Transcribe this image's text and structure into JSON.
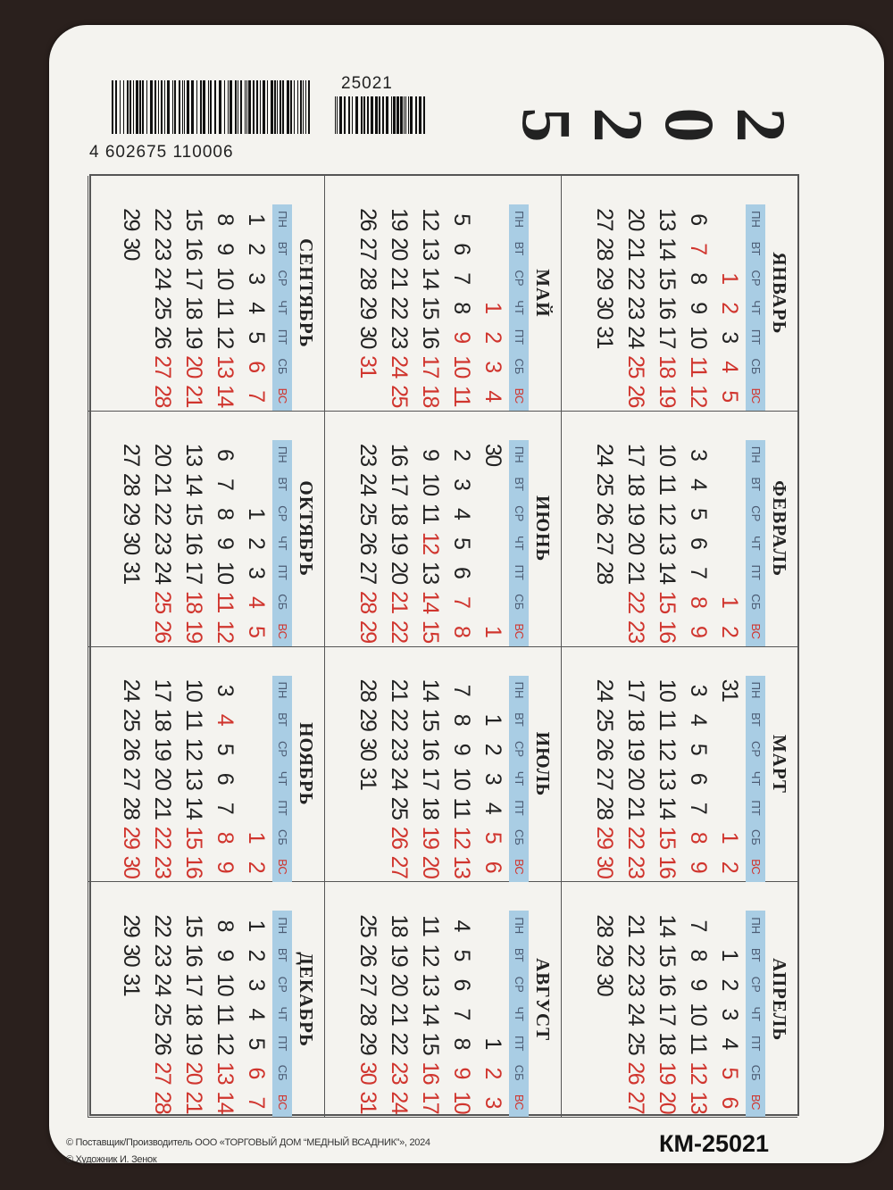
{
  "year": [
    "2",
    "0",
    "2",
    "5"
  ],
  "weekdays": [
    "ПН",
    "ВТ",
    "СР",
    "ЧТ",
    "ПТ",
    "СБ",
    "ВС"
  ],
  "months": [
    {
      "name": "ЯНВАРЬ",
      "start": 2,
      "days": 31,
      "holidays": [
        1,
        2,
        7
      ]
    },
    {
      "name": "ФЕВРАЛЬ",
      "start": 5,
      "days": 28,
      "holidays": []
    },
    {
      "name": "МАРТ",
      "start": 5,
      "days": 31,
      "holidays": [
        8
      ]
    },
    {
      "name": "АПРЕЛЬ",
      "start": 1,
      "days": 30,
      "holidays": []
    },
    {
      "name": "МАЙ",
      "start": 3,
      "days": 31,
      "holidays": [
        1,
        2,
        9
      ]
    },
    {
      "name": "ИЮНЬ",
      "start": 6,
      "days": 30,
      "holidays": [
        12
      ]
    },
    {
      "name": "ИЮЛЬ",
      "start": 1,
      "days": 31,
      "holidays": []
    },
    {
      "name": "АВГУСТ",
      "start": 4,
      "days": 31,
      "holidays": []
    },
    {
      "name": "СЕНТЯБРЬ",
      "start": 0,
      "days": 30,
      "holidays": []
    },
    {
      "name": "ОКТЯБРЬ",
      "start": 2,
      "days": 31,
      "holidays": []
    },
    {
      "name": "НОЯБРЬ",
      "start": 5,
      "days": 30,
      "holidays": [
        4
      ]
    },
    {
      "name": "ДЕКАБРЬ",
      "start": 0,
      "days": 31,
      "holidays": []
    }
  ],
  "barcode": {
    "number": "4  602675  110006",
    "addon": "25021"
  },
  "footer": {
    "line1": "© Поставщик/Производитель ООО «ТОРГОВЫЙ ДОМ “МЕДНЫЙ ВСАДНИК”»,  2024",
    "line2": "© Художник И. Зенок",
    "code": "КМ-25021"
  },
  "colors": {
    "weekend": "#d0352e",
    "header_bg": "#a9cde4",
    "card": "#f4f3ef"
  }
}
